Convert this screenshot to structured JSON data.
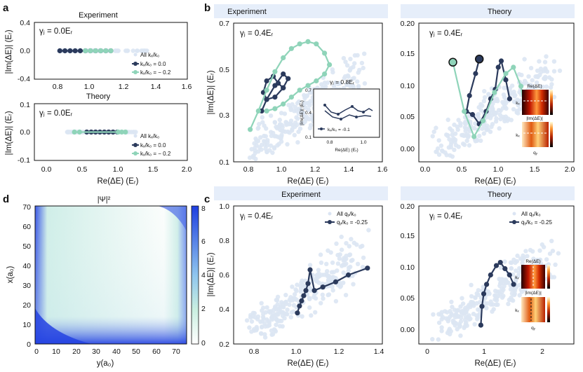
{
  "colors": {
    "exp_fill": "#e6eefa",
    "theory_fill": "#e6eefa",
    "navy": "#2b3a5c",
    "mint": "#8fd4b9",
    "scatter": "#dbe5f3",
    "wave_low": "#ffffff",
    "wave_mid": "#b6e8de",
    "wave_high": "#2243e0"
  },
  "panel_labels": {
    "a": "a",
    "b": "b",
    "c": "c",
    "d": "d"
  },
  "headers": {
    "b_exp": "Experiment",
    "b_theory": "Theory",
    "c_exp": "Experiment",
    "c_theory": "Theory"
  },
  "axes": {
    "im_label": "|Im(ΔE)| (Eᵣ)",
    "re_label": "Re(ΔE) (Eᵣ)",
    "x_label_d": "y(a₀)",
    "y_label_d": "x(a₀)"
  },
  "panel_a": {
    "top_title": "Experiment",
    "bottom_title": "Theory",
    "top_gamma": "γⱼ = 0.0Eᵣ",
    "bottom_gamma": "γⱼ = 0.0Eᵣ",
    "top_ticks_y": [
      "0.4",
      "0.0",
      "-0.4"
    ],
    "bottom_ticks_y": [
      "0.1",
      "0.0",
      "-0.1"
    ],
    "top_ticks_x": [
      "0.8",
      "1.0",
      "1.2",
      "1.4",
      "1.6"
    ],
    "bottom_ticks_x": [
      "0.0",
      "0.5",
      "1.0",
      "1.5",
      "2.0"
    ],
    "legend": [
      "All kₓ/k₀",
      "kₓ/k₀ = 0.0",
      "kₓ/k₀ = − 0.2"
    ]
  },
  "panel_b_exp": {
    "gamma": "γⱼ = 0.4Eᵣ",
    "ticks_y": [
      "0.7",
      "0.5",
      "0.3",
      "0.1"
    ],
    "ticks_x": [
      "0.8",
      "1.0",
      "1.2",
      "1.4",
      "1.6"
    ],
    "inset_gamma": "γⱼ = 0.8Eᵣ",
    "inset_ticks_y": [
      "0.7",
      "0.4",
      "0.1"
    ],
    "inset_ticks_x": [
      "0.8",
      "1.0"
    ],
    "inset_legend": "kₓ/k₀ = -0.1",
    "inset_xlabel": "Re(ΔE) (Eᵣ)",
    "inset_ylabel": "|Im(ΔE)| (Eᵣ)"
  },
  "panel_b_theory": {
    "gamma": "γⱼ = 0.4Eᵣ",
    "ticks_y": [
      "0.20",
      "0.15",
      "0.10",
      "0.05",
      "0.00"
    ],
    "ticks_x": [
      "0.0",
      "0.5",
      "1.0",
      "1.5",
      "2.0"
    ],
    "inset_top_label": "Re(ΔE)",
    "inset_bottom_label": "|Im(ΔE)|",
    "inset_ky": "kₓ",
    "inset_qy": "qᵧ"
  },
  "panel_c_exp": {
    "gamma": "γⱼ = 0.4Eᵣ",
    "ticks_y": [
      "1.0",
      "0.8",
      "0.6",
      "0.4",
      "0.2"
    ],
    "ticks_x": [
      "0.8",
      "1.0",
      "1.2",
      "1.4"
    ],
    "legend": [
      "All qᵧ/k₀",
      "qᵧ/k₀ = -0.25"
    ]
  },
  "panel_c_theory": {
    "gamma": "γⱼ = 0.4Eᵣ",
    "ticks_y": [
      "0.20",
      "0.15",
      "0.10",
      "0.05",
      "0.00"
    ],
    "ticks_x": [
      "0",
      "1",
      "2"
    ],
    "legend": [
      "All qᵧ/k₀",
      "qᵧ/k₀ = -0.25"
    ],
    "inset_top_label": "Re(ΔE)",
    "inset_bottom_label": "|Im(ΔE)|",
    "inset_ky": "kₓ",
    "inset_qy": "qᵧ"
  },
  "panel_d": {
    "title": "|Ψ|²",
    "ticks_y": [
      "70",
      "60",
      "50",
      "40",
      "30",
      "20",
      "10",
      "0"
    ],
    "ticks_x": [
      "0",
      "10",
      "20",
      "30",
      "40",
      "50",
      "60",
      "70"
    ],
    "colorbar_ticks": [
      "8",
      "6",
      "4",
      "2",
      "0"
    ]
  },
  "chart_data": [
    {
      "id": "a_top",
      "type": "scatter",
      "title": "Experiment",
      "xlabel": "Re(ΔE) (Eᵣ)",
      "ylabel": "|Im(ΔE)| (Eᵣ)",
      "xlim": [
        0.7,
        1.6
      ],
      "ylim": [
        -0.4,
        0.4
      ],
      "series": [
        {
          "name": "kₓ/k₀ = 0.0",
          "x": [
            0.85,
            0.88,
            0.91,
            0.94,
            0.97,
            1.0,
            1.03,
            1.06,
            1.09,
            1.12,
            1.15
          ],
          "y": [
            0,
            0,
            0,
            0,
            0,
            0,
            0,
            0,
            0,
            0,
            0
          ]
        },
        {
          "name": "kₓ/k₀ = − 0.2",
          "x": [
            1.0,
            1.03,
            1.06,
            1.09,
            1.12,
            1.15
          ],
          "y": [
            0,
            0,
            0,
            0,
            0,
            0
          ]
        }
      ]
    },
    {
      "id": "a_bottom",
      "type": "scatter",
      "title": "Theory",
      "xlabel": "Re(ΔE) (Eᵣ)",
      "ylabel": "|Im(ΔE)| (Eᵣ)",
      "xlim": [
        -0.1,
        2.0
      ],
      "ylim": [
        -0.1,
        0.1
      ],
      "series": [
        {
          "name": "kₓ/k₀ = 0.0",
          "x": [
            0.62,
            0.68,
            0.74,
            0.8,
            0.86,
            0.92,
            0.98,
            1.04
          ],
          "y": [
            0,
            0,
            0,
            0,
            0,
            0,
            0,
            0
          ]
        },
        {
          "name": "kₓ/k₀ = − 0.2",
          "x": [
            0.45,
            0.52,
            1.05,
            1.1,
            1.15
          ],
          "y": [
            0,
            0,
            0,
            0,
            0
          ]
        }
      ]
    },
    {
      "id": "b_exp",
      "type": "line",
      "title": "Experiment",
      "xlim": [
        0.7,
        1.6
      ],
      "ylim": [
        0.1,
        0.7
      ],
      "series": [
        {
          "name": "navy",
          "x": [
            0.87,
            0.9,
            0.95,
            1.0,
            1.03,
            1.0,
            0.95,
            0.9,
            0.88,
            0.9,
            0.94,
            0.97,
            1.0
          ],
          "y": [
            0.32,
            0.37,
            0.43,
            0.48,
            0.46,
            0.42,
            0.38,
            0.37,
            0.4,
            0.45,
            0.47,
            0.44,
            0.42
          ]
        },
        {
          "name": "mint",
          "x": [
            0.8,
            0.85,
            0.9,
            0.95,
            1.0,
            1.05,
            1.1,
            1.15,
            1.2,
            1.25,
            1.28,
            1.25,
            1.2,
            1.15,
            1.1,
            1.05,
            1.0,
            0.95,
            0.9
          ],
          "y": [
            0.24,
            0.32,
            0.41,
            0.49,
            0.55,
            0.59,
            0.61,
            0.62,
            0.61,
            0.57,
            0.52,
            0.48,
            0.45,
            0.43,
            0.41,
            0.38,
            0.35,
            0.33,
            0.32
          ]
        }
      ]
    },
    {
      "id": "b_theory",
      "type": "line",
      "title": "Theory",
      "xlim": [
        -0.05,
        2.0
      ],
      "ylim": [
        -0.02,
        0.2
      ],
      "series": [
        {
          "name": "navy",
          "x": [
            0.75,
            0.7,
            0.62,
            0.58,
            0.66,
            0.75,
            0.84,
            0.9,
            0.96,
            1.0,
            1.04,
            1.1,
            1.15
          ],
          "y": [
            0.143,
            0.12,
            0.085,
            0.06,
            0.055,
            0.04,
            0.06,
            0.08,
            0.095,
            0.13,
            0.14,
            0.11,
            0.08
          ]
        },
        {
          "name": "mint",
          "x": [
            0.4,
            0.55,
            0.68,
            0.8,
            0.95,
            1.1,
            1.2,
            1.3,
            1.35
          ],
          "y": [
            0.138,
            0.06,
            0.02,
            0.045,
            0.09,
            0.12,
            0.13,
            0.1,
            0.06
          ]
        }
      ]
    },
    {
      "id": "c_exp",
      "type": "line",
      "title": "Experiment",
      "xlim": [
        0.7,
        1.4
      ],
      "ylim": [
        0.2,
        1.0
      ],
      "series": [
        {
          "name": "qᵧ/k₀ = -0.25",
          "x": [
            1.0,
            1.01,
            1.02,
            1.03,
            1.04,
            1.05,
            1.06,
            1.08,
            1.12,
            1.18,
            1.24,
            1.33
          ],
          "y": [
            0.38,
            0.42,
            0.45,
            0.48,
            0.51,
            0.55,
            0.63,
            0.51,
            0.53,
            0.56,
            0.6,
            0.64
          ]
        }
      ]
    },
    {
      "id": "c_theory",
      "type": "line",
      "title": "Theory",
      "xlim": [
        -0.1,
        2.6
      ],
      "ylim": [
        -0.02,
        0.2
      ],
      "series": [
        {
          "name": "qᵧ/k₀ = -0.25",
          "x": [
            0.98,
            1.0,
            1.03,
            1.08,
            1.15,
            1.25,
            1.32,
            1.4,
            1.48,
            1.55
          ],
          "y": [
            0.01,
            0.04,
            0.06,
            0.075,
            0.09,
            0.105,
            0.11,
            0.1,
            0.09,
            0.075
          ]
        }
      ]
    }
  ]
}
